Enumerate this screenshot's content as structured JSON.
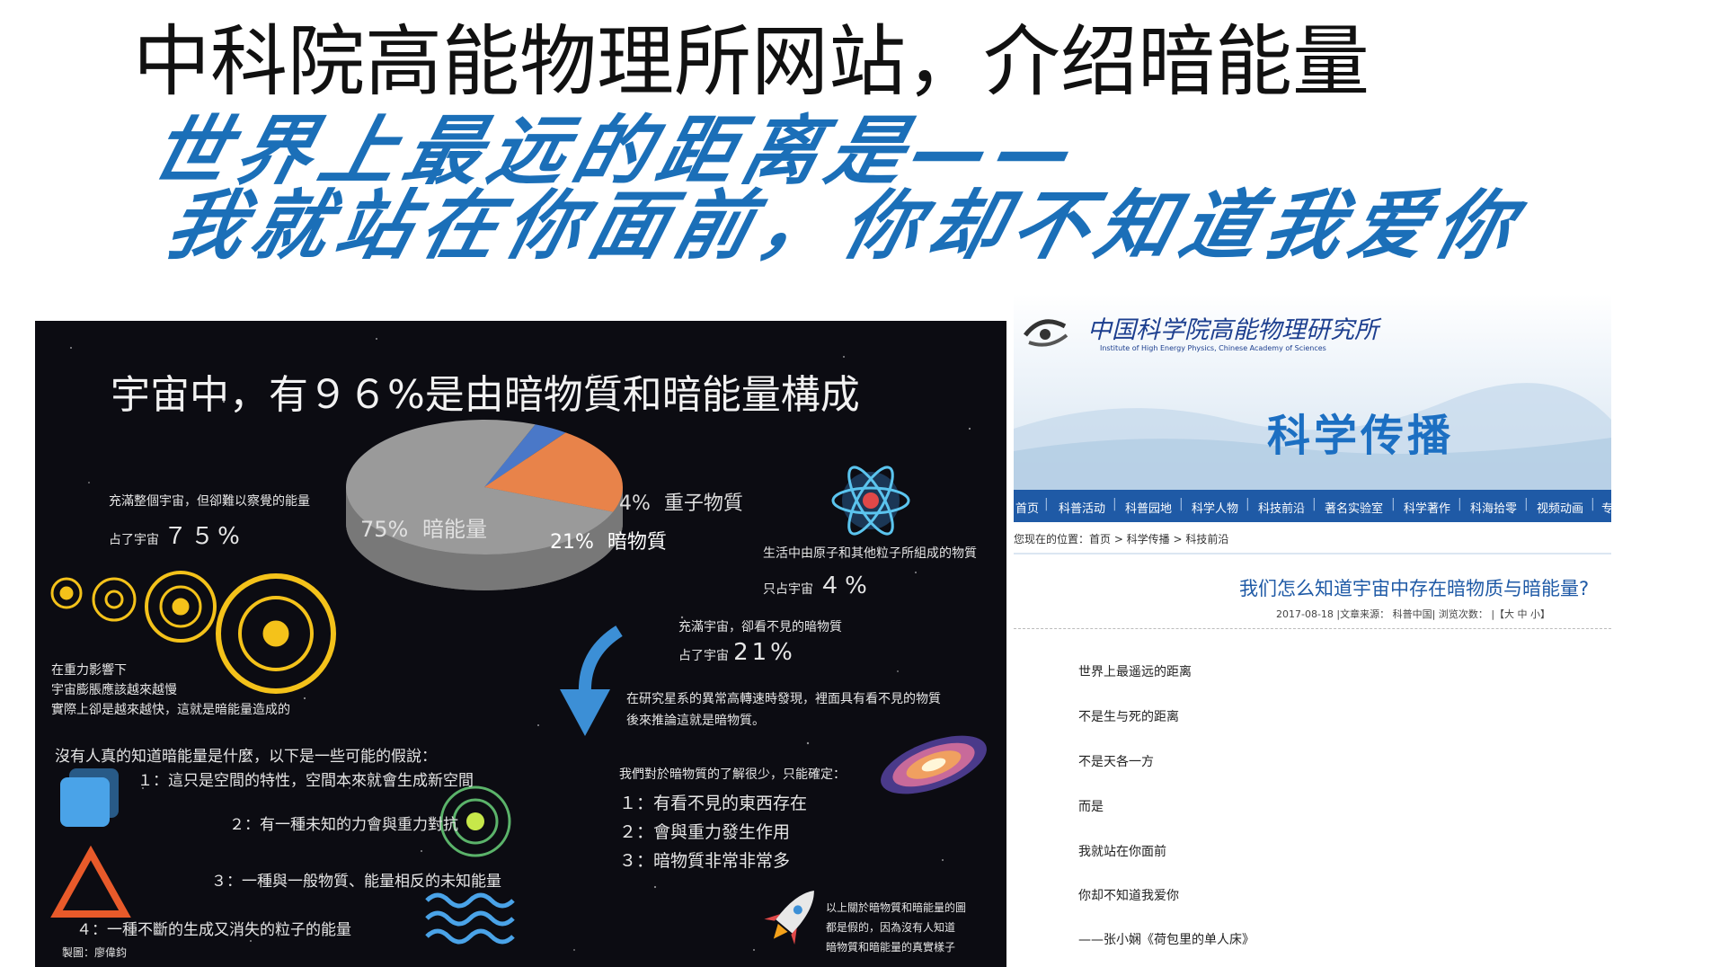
{
  "slide": {
    "title": "中科院高能物理所网站，介绍暗能量",
    "subtitle_line1": "世界上最远的距离是——",
    "subtitle_line2": "我就站在你面前，你却不知道我爱你"
  },
  "infographic": {
    "title": "宇宙中，有９６%是由暗物質和暗能量構成",
    "pie": {
      "slices": [
        {
          "label": "暗能量",
          "value": 75,
          "value_text": "75%",
          "color": "#9a9a9a"
        },
        {
          "label": "暗物質",
          "value": 21,
          "value_text": "21%",
          "color": "#e8834a"
        },
        {
          "label": "重子物質",
          "value": 4,
          "value_text": "4%",
          "color": "#4a78c8"
        }
      ]
    },
    "dark_energy_desc": "充滿整個宇宙，但卻難以察覺的能量",
    "dark_energy_pct_prefix": "占了宇宙",
    "dark_energy_pct": "７５%",
    "baryon_desc": "生活中由原子和其他粒子所組成的物質",
    "baryon_pct_prefix": "只占宇宙",
    "baryon_pct": "４%",
    "dark_matter_desc": "充滿宇宙，卻看不見的暗物質",
    "dark_matter_pct_prefix": "占了宇宙",
    "dark_matter_pct": "21%",
    "gravity_lines": [
      "在重力影響下",
      "宇宙膨脹應該越來越慢",
      "實際上卻是越來越快，這就是暗能量造成的"
    ],
    "hypotheses_intro": "沒有人真的知道暗能量是什麼，以下是一些可能的假說：",
    "hypotheses": [
      "１：這只是空間的特性，空間本來就會生成新空間",
      "２：有一種未知的力會與重力對抗",
      "３：一種與一般物質、能量相反的未知能量",
      "４：一種不斷的生成又消失的粒子的能量"
    ],
    "galaxy_lines": [
      "在研究星系的異常高轉速時發現，裡面具有看不見的物質",
      "後來推論這就是暗物質。"
    ],
    "knowledge_intro": "我們對於暗物質的了解很少，只能確定：",
    "knowledge_items": [
      "１：有看不見的東西存在",
      "２：會與重力發生作用",
      "３：暗物質非常非常多"
    ],
    "disclaimer_lines": [
      "以上關於暗物質和暗能量的圖",
      "都是假的，因為沒有人知道",
      "暗物質和暗能量的真實樣子"
    ],
    "credit": "製圖：廖偉鈞"
  },
  "website": {
    "logo_cn": "中国科学院高能物理研究所",
    "logo_en": "Institute of High Energy Physics, Chinese Academy of Sciences",
    "banner_title": "科学传播",
    "nav_items": [
      "首页",
      "科普活动",
      "科普园地",
      "科学人物",
      "科技前沿",
      "著名实验室",
      "科学著作",
      "科海拾零",
      "视频动画",
      "专"
    ],
    "breadcrumb": "您现在的位置：首页 > 科学传播 > 科技前沿",
    "article_title": "我们怎么知道宇宙中存在暗物质与暗能量?",
    "article_meta": "2017-08-18 |文章来源：  科普中国| 浏览次数：   |【大 中 小】",
    "article_lines": [
      "世界上最遥远的距离",
      "不是生与死的距离",
      "不是天各一方",
      "而是",
      "我就站在你面前",
      "你却不知道我爱你",
      "——张小娴《荷包里的单人床》"
    ],
    "colors": {
      "nav": "#1f5aa6",
      "title": "#1f5aa6"
    }
  }
}
